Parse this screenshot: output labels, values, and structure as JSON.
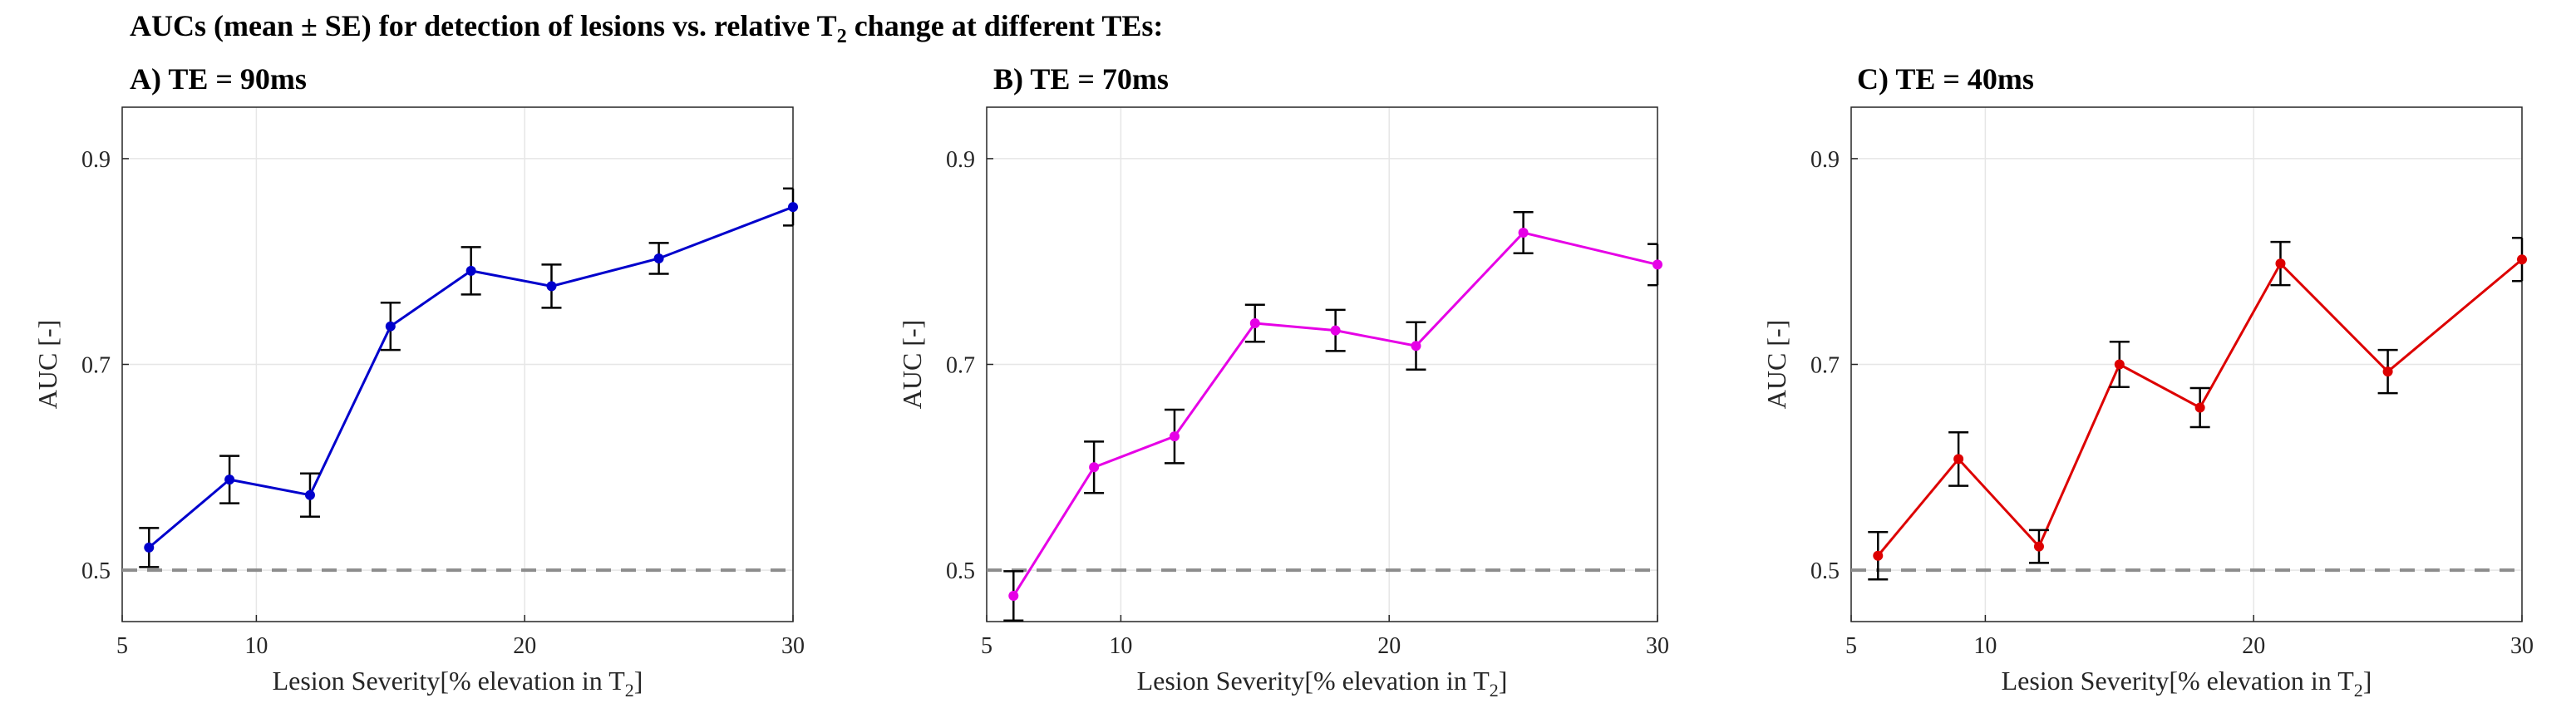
{
  "figure": {
    "title_main": "AUCs (mean ± SE) for detection of lesions vs. relative T",
    "title_sub": "2",
    "title_tail": " change at different TEs:"
  },
  "chart_data": [
    {
      "type": "line",
      "panel_title": "A) TE = 90ms",
      "color": "#0000cc",
      "x": [
        6,
        9,
        12,
        15,
        18,
        21,
        25,
        30
      ],
      "y": [
        0.522,
        0.588,
        0.573,
        0.737,
        0.791,
        0.776,
        0.803,
        0.853
      ],
      "se": [
        0.019,
        0.023,
        0.021,
        0.023,
        0.023,
        0.021,
        0.015,
        0.018
      ],
      "reference_line": 0.5,
      "xlim": [
        5,
        30
      ],
      "ylim": [
        0.45,
        0.95
      ],
      "xticks": [
        5,
        10,
        20,
        30
      ],
      "yticks": [
        0.5,
        0.7,
        0.9
      ],
      "xlabel": "Lesion Severity[% elevation in T",
      "xlabel_sub": "2",
      "xlabel_tail": "]",
      "ylabel": "AUC [-]"
    },
    {
      "type": "line",
      "panel_title": "B) TE = 70ms",
      "color": "#e600e6",
      "x": [
        6,
        9,
        12,
        15,
        18,
        21,
        25,
        30
      ],
      "y": [
        0.475,
        0.6,
        0.63,
        0.74,
        0.733,
        0.718,
        0.828,
        0.797
      ],
      "se": [
        0.024,
        0.025,
        0.026,
        0.018,
        0.02,
        0.023,
        0.02,
        0.02
      ],
      "reference_line": 0.5,
      "xlim": [
        5,
        30
      ],
      "ylim": [
        0.45,
        0.95
      ],
      "xticks": [
        5,
        10,
        20,
        30
      ],
      "yticks": [
        0.5,
        0.7,
        0.9
      ],
      "xlabel": "Lesion Severity[% elevation in T",
      "xlabel_sub": "2",
      "xlabel_tail": "]",
      "ylabel": "AUC [-]"
    },
    {
      "type": "line",
      "panel_title": "C) TE = 40ms",
      "color": "#dd0000",
      "x": [
        6,
        9,
        12,
        15,
        18,
        21,
        25,
        30
      ],
      "y": [
        0.514,
        0.608,
        0.523,
        0.7,
        0.658,
        0.798,
        0.693,
        0.802
      ],
      "se": [
        0.023,
        0.026,
        0.016,
        0.022,
        0.019,
        0.021,
        0.021,
        0.021
      ],
      "reference_line": 0.5,
      "xlim": [
        5,
        30
      ],
      "ylim": [
        0.45,
        0.95
      ],
      "xticks": [
        5,
        10,
        20,
        30
      ],
      "yticks": [
        0.5,
        0.7,
        0.9
      ],
      "xlabel": "Lesion Severity[% elevation in T",
      "xlabel_sub": "2",
      "xlabel_tail": "]",
      "ylabel": "AUC [-]"
    }
  ]
}
